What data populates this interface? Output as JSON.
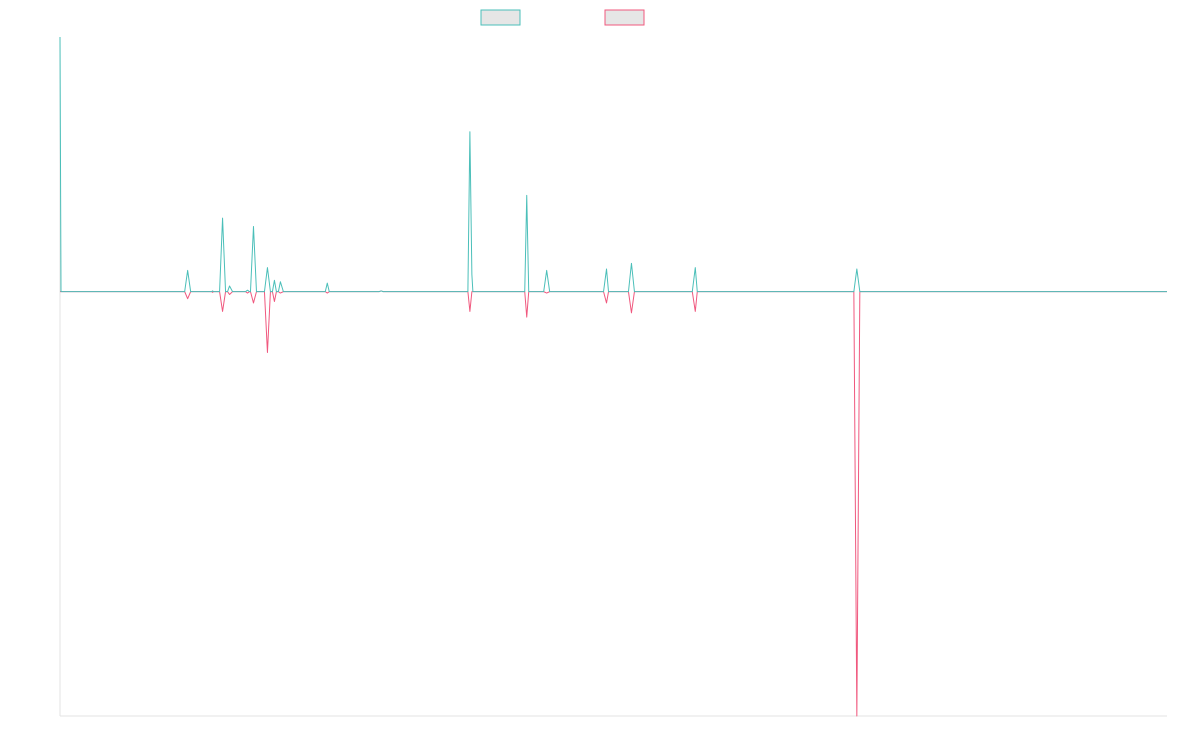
{
  "chart_data": {
    "type": "line",
    "title": "",
    "xlabel": "",
    "ylabel": "",
    "legend": {
      "placement": "top-center",
      "items": [
        {
          "series_index": 0,
          "label": ""
        },
        {
          "series_index": 1,
          "label": ""
        }
      ]
    },
    "grid": false,
    "x_range": [
      0,
      1110
    ],
    "ylim": [
      -300,
      180
    ],
    "series": [
      {
        "color": "#4bbfb9",
        "fill": "#e6e6e6",
        "points": [
          [
            0,
            180
          ],
          [
            1,
            0
          ],
          [
            3,
            0
          ],
          [
            125,
            0
          ],
          [
            128,
            15
          ],
          [
            131,
            0
          ],
          [
            152,
            0
          ],
          [
            153,
            0.5
          ],
          [
            154,
            0
          ],
          [
            160,
            0
          ],
          [
            163,
            52
          ],
          [
            166,
            0
          ],
          [
            168,
            0
          ],
          [
            170,
            4
          ],
          [
            173,
            0
          ],
          [
            186,
            0
          ],
          [
            188,
            1
          ],
          [
            190,
            0
          ],
          [
            191,
            0
          ],
          [
            194,
            46
          ],
          [
            197,
            0
          ],
          [
            205,
            0
          ],
          [
            208,
            17
          ],
          [
            211,
            0
          ],
          [
            213,
            0
          ],
          [
            215,
            8
          ],
          [
            217,
            0
          ],
          [
            219,
            0
          ],
          [
            221,
            7
          ],
          [
            224,
            0
          ],
          [
            266,
            0
          ],
          [
            268,
            6
          ],
          [
            270,
            0
          ],
          [
            320,
            0
          ],
          [
            322,
            0.5
          ],
          [
            324,
            0
          ],
          [
            409,
            0
          ],
          [
            411,
            113
          ],
          [
            413,
            12
          ],
          [
            414,
            0
          ],
          [
            466,
            0
          ],
          [
            468,
            68
          ],
          [
            470,
            0
          ],
          [
            485,
            0
          ],
          [
            488,
            15
          ],
          [
            491,
            0
          ],
          [
            545,
            0
          ],
          [
            548,
            16
          ],
          [
            550,
            0
          ],
          [
            570,
            0
          ],
          [
            573,
            20
          ],
          [
            576,
            0
          ],
          [
            634,
            0
          ],
          [
            637,
            17
          ],
          [
            639,
            0
          ],
          [
            796,
            0
          ],
          [
            799,
            16
          ],
          [
            802,
            0
          ],
          [
            1110,
            0
          ]
        ]
      },
      {
        "color": "#f0587e",
        "fill": "#e6e6e6",
        "points": [
          [
            0,
            0
          ],
          [
            125,
            0
          ],
          [
            128,
            -5
          ],
          [
            131,
            0
          ],
          [
            152,
            0
          ],
          [
            153,
            -0.5
          ],
          [
            154,
            0
          ],
          [
            160,
            0
          ],
          [
            163,
            -14
          ],
          [
            166,
            0
          ],
          [
            168,
            0
          ],
          [
            170,
            -2
          ],
          [
            173,
            0
          ],
          [
            186,
            0
          ],
          [
            188,
            -1
          ],
          [
            190,
            0
          ],
          [
            191,
            0
          ],
          [
            194,
            -8
          ],
          [
            197,
            0
          ],
          [
            205,
            0
          ],
          [
            208,
            -43
          ],
          [
            211,
            0
          ],
          [
            213,
            0
          ],
          [
            215,
            -7
          ],
          [
            217,
            0
          ],
          [
            219,
            0
          ],
          [
            221,
            -1
          ],
          [
            224,
            0
          ],
          [
            266,
            0
          ],
          [
            268,
            -1
          ],
          [
            270,
            0
          ],
          [
            320,
            0
          ],
          [
            322,
            0.5
          ],
          [
            324,
            0
          ],
          [
            409,
            0
          ],
          [
            411,
            -14
          ],
          [
            413,
            0
          ],
          [
            466,
            0
          ],
          [
            468,
            -18
          ],
          [
            470,
            0
          ],
          [
            485,
            0
          ],
          [
            488,
            -1
          ],
          [
            491,
            0
          ],
          [
            545,
            0
          ],
          [
            548,
            -8
          ],
          [
            550,
            0
          ],
          [
            570,
            0
          ],
          [
            573,
            -15
          ],
          [
            576,
            0
          ],
          [
            634,
            0
          ],
          [
            637,
            -14
          ],
          [
            639,
            0
          ],
          [
            796,
            0
          ],
          [
            799,
            -300
          ],
          [
            802,
            0
          ],
          [
            1110,
            0
          ]
        ]
      }
    ]
  }
}
